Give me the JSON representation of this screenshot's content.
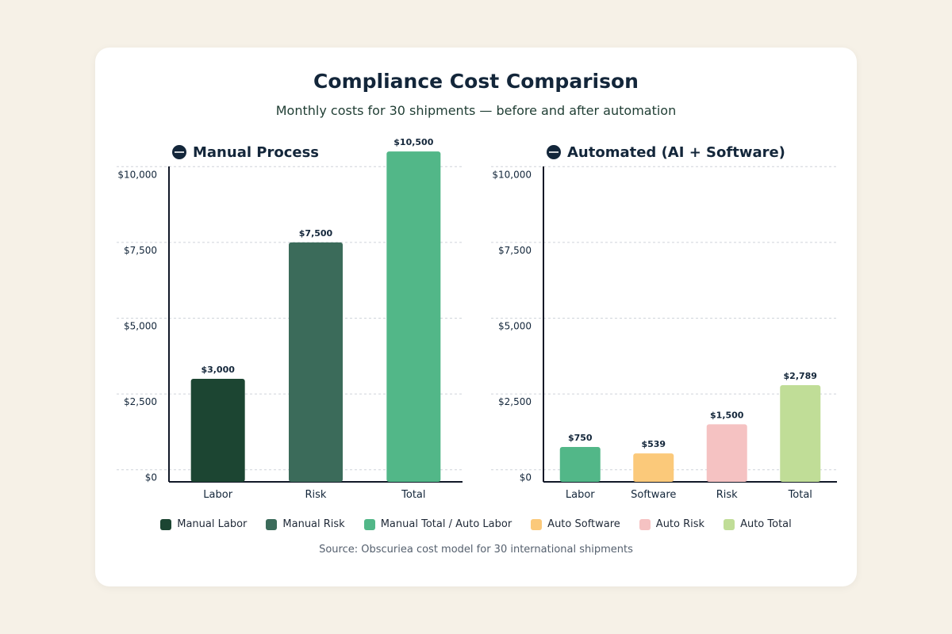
{
  "title": "Compliance Cost Comparison",
  "subtitle": "Monthly costs for 30 shipments — before and after automation",
  "source": "Source: Obscuriea cost model for 30 international shipments",
  "panels": [
    {
      "heading": "Manual Process",
      "icon": "minus-circle-icon"
    },
    {
      "heading": "Automated (AI + Software)",
      "icon": "minus-circle-icon"
    }
  ],
  "legend": [
    {
      "label": "Manual Labor",
      "color": "#1c4532"
    },
    {
      "label": "Manual Risk",
      "color": "#3b6b5a"
    },
    {
      "label": "Manual Total / Auto Labor",
      "color": "#52b788"
    },
    {
      "label": "Auto Software",
      "color": "#fbc97a"
    },
    {
      "label": "Auto Risk",
      "color": "#f5c2c2"
    },
    {
      "label": "Auto Total",
      "color": "#c0dd97"
    }
  ],
  "chart_data": [
    {
      "type": "bar",
      "title": "Manual Process",
      "categories": [
        "Labor",
        "Risk",
        "Total"
      ],
      "values": [
        3000,
        7500,
        10500
      ],
      "value_labels": [
        "$3,000",
        "$7,500",
        "$10,500"
      ],
      "colors": [
        "#1c4532",
        "#3b6b5a",
        "#52b788"
      ],
      "yticks": [
        0,
        2500,
        5000,
        7500,
        10000
      ],
      "ytick_labels": [
        "$0",
        "$2,500",
        "$5,000",
        "$7,500",
        "$10,000"
      ],
      "ylim": [
        -400,
        10400
      ],
      "grid": true
    },
    {
      "type": "bar",
      "title": "Automated (AI + Software)",
      "categories": [
        "Labor",
        "Software",
        "Risk",
        "Total"
      ],
      "values": [
        750,
        539,
        1500,
        2789
      ],
      "value_labels": [
        "$750",
        "$539",
        "$1,500",
        "$2,789"
      ],
      "colors": [
        "#52b788",
        "#fbc97a",
        "#f5c2c2",
        "#c0dd97"
      ],
      "yticks": [
        0,
        2500,
        5000,
        7500,
        10000
      ],
      "ytick_labels": [
        "$0",
        "$2,500",
        "$5,000",
        "$7,500",
        "$10,000"
      ],
      "ylim": [
        -400,
        10400
      ],
      "grid": true
    }
  ]
}
